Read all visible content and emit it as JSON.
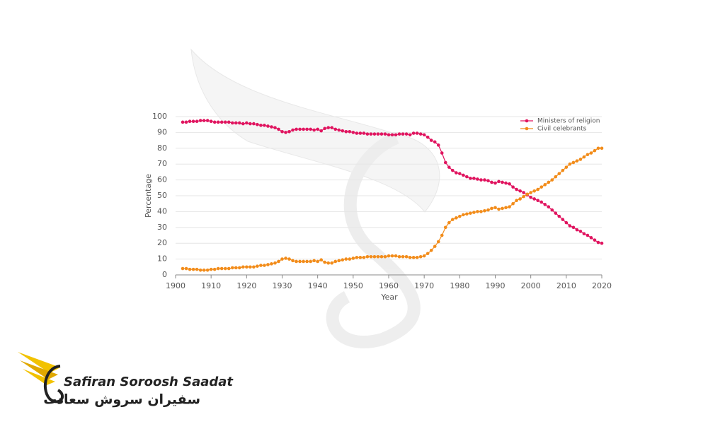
{
  "chart_data": {
    "type": "line",
    "xlabel": "Year",
    "ylabel": "Percentage",
    "x": [
      1902,
      1903,
      1904,
      1905,
      1906,
      1907,
      1908,
      1909,
      1910,
      1911,
      1912,
      1913,
      1914,
      1915,
      1916,
      1917,
      1918,
      1919,
      1920,
      1921,
      1922,
      1923,
      1924,
      1925,
      1926,
      1927,
      1928,
      1929,
      1930,
      1931,
      1932,
      1933,
      1934,
      1935,
      1936,
      1937,
      1938,
      1939,
      1940,
      1941,
      1942,
      1943,
      1944,
      1945,
      1946,
      1947,
      1948,
      1949,
      1950,
      1951,
      1952,
      1953,
      1954,
      1955,
      1956,
      1957,
      1958,
      1959,
      1960,
      1961,
      1962,
      1963,
      1964,
      1965,
      1966,
      1967,
      1968,
      1969,
      1970,
      1971,
      1972,
      1973,
      1974,
      1975,
      1976,
      1977,
      1978,
      1979,
      1980,
      1981,
      1982,
      1983,
      1984,
      1985,
      1986,
      1987,
      1988,
      1989,
      1990,
      1991,
      1992,
      1993,
      1994,
      1995,
      1996,
      1997,
      1998,
      1999,
      2000,
      2001,
      2002,
      2003,
      2004,
      2005,
      2006,
      2007,
      2008,
      2009,
      2010,
      2011,
      2012,
      2013,
      2014,
      2015,
      2016,
      2017,
      2018,
      2019,
      2020
    ],
    "series": [
      {
        "name": "Ministers of religion",
        "color": "#e0145f",
        "values": [
          96.5,
          96.5,
          97,
          97,
          97,
          97.5,
          97.5,
          97.5,
          97,
          96.5,
          96.5,
          96.5,
          96.5,
          96.5,
          96,
          96,
          96,
          95.5,
          96,
          95.5,
          95.5,
          95,
          94.5,
          94.5,
          94,
          93.5,
          93,
          92,
          90.5,
          90,
          90.5,
          91.5,
          92,
          92,
          92,
          92,
          92,
          91.5,
          92,
          91,
          92.5,
          93,
          93,
          92,
          91.5,
          91,
          90.5,
          90.5,
          90,
          89.5,
          89.5,
          89.5,
          89,
          89,
          89,
          89,
          89,
          89,
          88.5,
          88.5,
          88.5,
          89,
          89,
          89,
          88.5,
          89.5,
          89.5,
          89,
          88.5,
          87,
          85,
          84,
          82,
          77,
          71,
          68,
          66,
          64.5,
          64,
          63,
          62,
          61,
          61,
          60.5,
          60,
          60,
          59.5,
          58.5,
          58,
          59,
          58.5,
          58,
          57.5,
          55.5,
          54,
          53,
          52,
          50.5,
          49,
          48,
          47,
          46,
          44.5,
          43,
          41,
          39,
          37,
          35,
          33,
          31,
          30,
          28.5,
          27.5,
          26,
          25,
          23.5,
          22,
          20.5,
          20
        ]
      },
      {
        "name": "Civil celebrants",
        "color": "#f28c1a",
        "values": [
          4,
          4,
          3.5,
          3.5,
          3.5,
          3,
          3,
          3,
          3.5,
          3.5,
          4,
          4,
          4,
          4,
          4.5,
          4.5,
          4.5,
          5,
          5,
          5,
          5,
          5.5,
          6,
          6,
          6.5,
          7,
          7.5,
          8.5,
          10,
          10.5,
          10,
          9,
          8.5,
          8.5,
          8.5,
          8.5,
          8.5,
          9,
          8.5,
          9.5,
          8,
          7.5,
          7.5,
          8.5,
          9,
          9.5,
          10,
          10,
          10.5,
          11,
          11,
          11,
          11.5,
          11.5,
          11.5,
          11.5,
          11.5,
          11.5,
          12,
          12,
          12,
          11.5,
          11.5,
          11.5,
          11,
          11,
          11,
          11.5,
          12,
          13.5,
          15.5,
          18,
          21,
          25,
          30,
          33,
          35,
          36,
          37,
          38,
          38.5,
          39,
          39.5,
          40,
          40,
          40.5,
          41,
          42,
          42.5,
          41.5,
          42,
          42.5,
          43,
          45,
          47,
          48,
          49.5,
          51,
          52,
          53,
          54,
          55.5,
          57,
          58.5,
          60,
          62,
          64,
          66,
          68,
          70,
          71,
          72,
          73,
          74.5,
          76,
          77,
          78.5,
          80,
          80
        ]
      }
    ],
    "xlim": [
      1900,
      2020
    ],
    "xticks": [
      1900,
      1910,
      1920,
      1930,
      1940,
      1950,
      1960,
      1970,
      1980,
      1990,
      2000,
      2010,
      2020
    ],
    "ylim": [
      0,
      100
    ],
    "yticks": [
      0,
      10,
      20,
      30,
      40,
      50,
      60,
      70,
      80,
      90,
      100
    ],
    "grid": true,
    "legend": "top-right"
  },
  "watermark": {
    "text": "Safiran Soroosh Saadat",
    "subtext": "سفیران سروش سعادت"
  }
}
